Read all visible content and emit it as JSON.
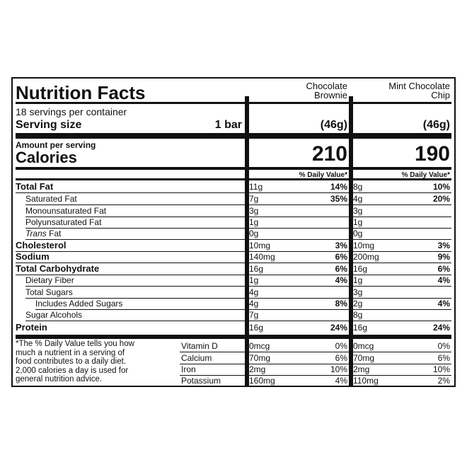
{
  "title": "Nutrition Facts",
  "columns": [
    {
      "name_line1": "Chocolate",
      "name_line2": "Brownie",
      "serving_weight": "(46g)",
      "calories": "210",
      "dv_header": "% Daily Value*"
    },
    {
      "name_line1": "Mint Chocolate",
      "name_line2": "Chip",
      "serving_weight": "(46g)",
      "calories": "190",
      "dv_header": "% Daily Value*"
    }
  ],
  "servings_per_container": "18 servings per container",
  "serving_size_label": "Serving size",
  "serving_size_value": "1 bar",
  "amount_per_serving": "Amount per serving",
  "calories_label": "Calories",
  "nutrients": [
    {
      "label": "Total Fat",
      "c1_amt": "11g",
      "c1_dv": "14%",
      "c2_amt": "8g",
      "c2_dv": "10%"
    },
    {
      "label": "Saturated Fat",
      "c1_amt": "7g",
      "c1_dv": "35%",
      "c2_amt": "4g",
      "c2_dv": "20%"
    },
    {
      "label": "Monounsaturated Fat",
      "c1_amt": "3g",
      "c1_dv": "",
      "c2_amt": "3g",
      "c2_dv": ""
    },
    {
      "label": "Polyunsaturated Fat",
      "c1_amt": "1g",
      "c1_dv": "",
      "c2_amt": "1g",
      "c2_dv": ""
    },
    {
      "label_italic": "Trans",
      "label": " Fat",
      "c1_amt": "0g",
      "c1_dv": "",
      "c2_amt": "0g",
      "c2_dv": ""
    },
    {
      "label": "Cholesterol",
      "c1_amt": "10mg",
      "c1_dv": "3%",
      "c2_amt": "10mg",
      "c2_dv": "3%"
    },
    {
      "label": "Sodium",
      "c1_amt": "140mg",
      "c1_dv": "6%",
      "c2_amt": "200mg",
      "c2_dv": "9%"
    },
    {
      "label": "Total Carbohydrate",
      "c1_amt": "16g",
      "c1_dv": "6%",
      "c2_amt": "16g",
      "c2_dv": "6%"
    },
    {
      "label": "Dietary Fiber",
      "c1_amt": "1g",
      "c1_dv": "4%",
      "c2_amt": "1g",
      "c2_dv": "4%"
    },
    {
      "label": "Total Sugars",
      "c1_amt": "4g",
      "c1_dv": "",
      "c2_amt": "3g",
      "c2_dv": ""
    },
    {
      "label": "Includes Added Sugars",
      "c1_amt": "4g",
      "c1_dv": "8%",
      "c2_amt": "2g",
      "c2_dv": "4%"
    },
    {
      "label": "Sugar Alcohols",
      "c1_amt": "7g",
      "c1_dv": "",
      "c2_amt": "8g",
      "c2_dv": ""
    },
    {
      "label": "Protein",
      "c1_amt": "16g",
      "c1_dv": "24%",
      "c2_amt": "16g",
      "c2_dv": "24%"
    }
  ],
  "footnote": [
    "*The % Daily Value tells you how",
    "much a nutrient in a serving of",
    "food contributes to a daily diet.",
    "2,000 calories a day is used for",
    "general nutrition advice."
  ],
  "vitamins": [
    {
      "label": "Vitamin D",
      "c1_amt": "0mcg",
      "c1_dv": "0%",
      "c2_amt": "0mcg",
      "c2_dv": "0%"
    },
    {
      "label": "Calcium",
      "c1_amt": "70mg",
      "c1_dv": "6%",
      "c2_amt": "70mg",
      "c2_dv": "6%"
    },
    {
      "label": "Iron",
      "c1_amt": "2mg",
      "c1_dv": "10%",
      "c2_amt": "2mg",
      "c2_dv": "10%"
    },
    {
      "label": "Potassium",
      "c1_amt": "160mg",
      "c1_dv": "4%",
      "c2_amt": "110mg",
      "c2_dv": "2%"
    }
  ]
}
